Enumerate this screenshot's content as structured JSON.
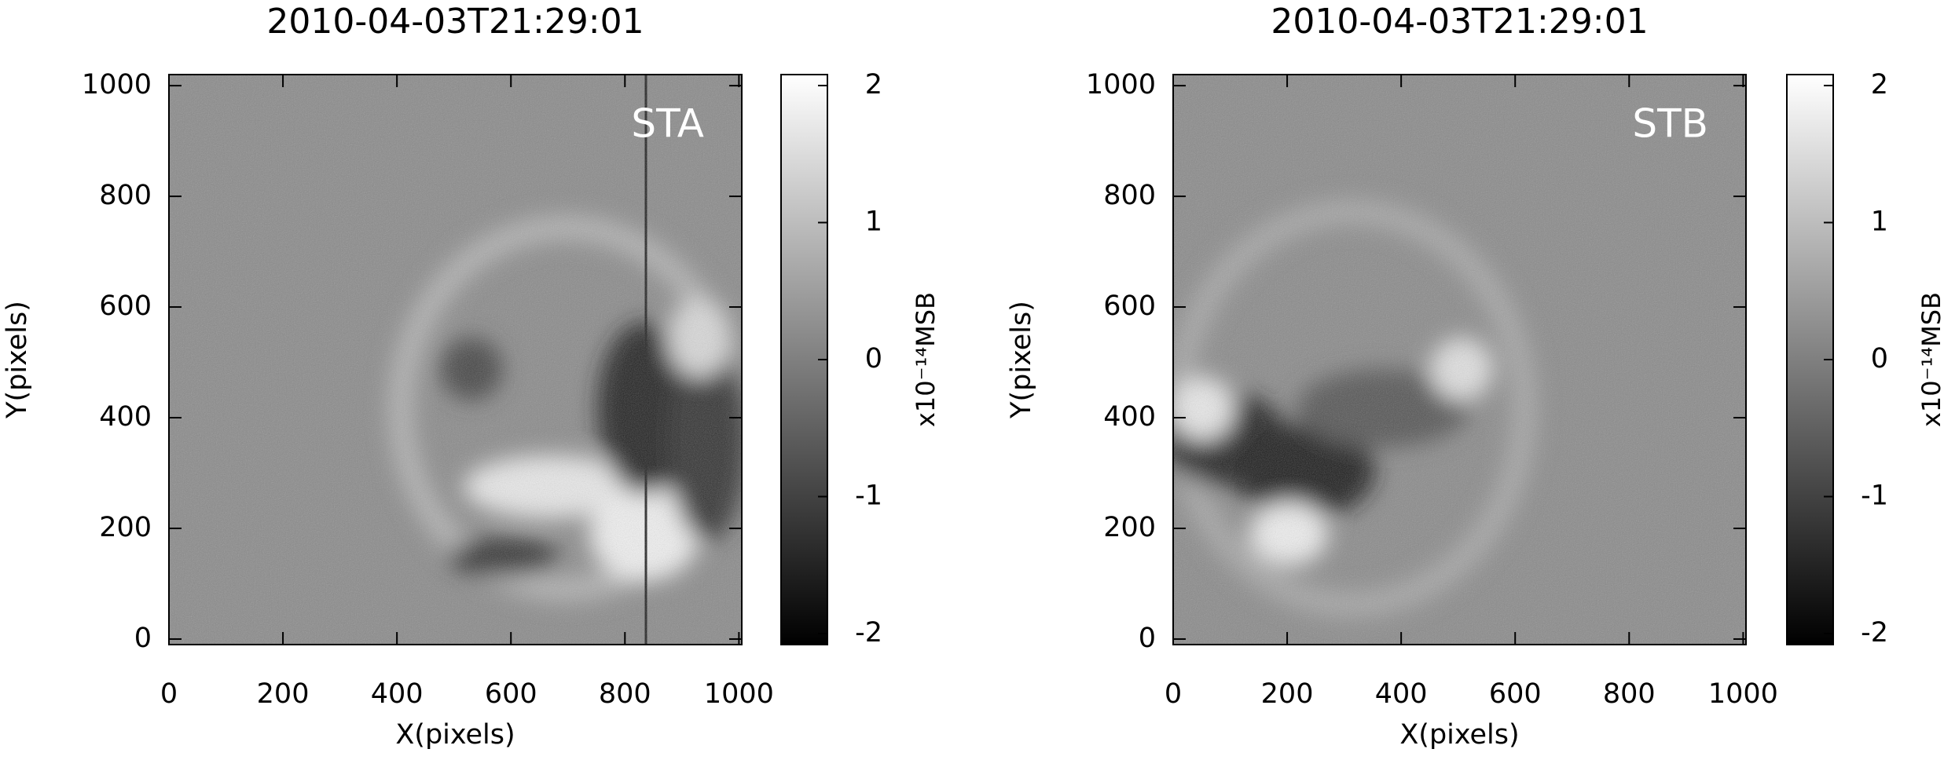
{
  "chart_data": [
    {
      "type": "image",
      "title": "2010-04-03T21:29:01",
      "panel_label": "STA",
      "xlabel": "X(pixels)",
      "ylabel": "Y(pixels)",
      "xlim": [
        0,
        1005
      ],
      "ylim": [
        -10,
        1020
      ],
      "xticks": [
        0,
        200,
        400,
        600,
        800,
        1000
      ],
      "yticks": [
        0,
        200,
        400,
        600,
        800,
        1000
      ],
      "colorbar": {
        "label": "x10⁻¹⁴MSB",
        "lim": [
          -2.08,
          2.08
        ],
        "ticks": [
          -2,
          -1,
          0,
          1,
          2
        ]
      }
    },
    {
      "type": "image",
      "title": "2010-04-03T21:29:01",
      "panel_label": "STB",
      "xlabel": "X(pixels)",
      "ylabel": "Y(pixels)",
      "xlim": [
        0,
        1005
      ],
      "ylim": [
        -10,
        1020
      ],
      "xticks": [
        0,
        200,
        400,
        600,
        800,
        1000
      ],
      "yticks": [
        0,
        200,
        400,
        600,
        800,
        1000
      ],
      "colorbar": {
        "label": "x10⁻¹⁴MSB",
        "lim": [
          -2.08,
          2.08
        ],
        "ticks": [
          -2,
          -1,
          0,
          1,
          2
        ]
      }
    }
  ]
}
